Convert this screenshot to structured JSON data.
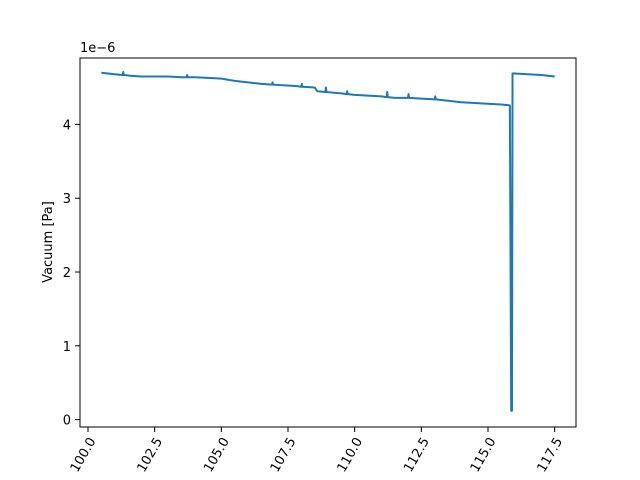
{
  "chart_data": {
    "type": "line",
    "title": "",
    "xlabel": "",
    "ylabel": "Vacuum [Pa]",
    "y_offset_text": "1e−6",
    "y_multiplier": 1e-06,
    "xlim": [
      99.7,
      118.3
    ],
    "ylim": [
      -0.1,
      4.9
    ],
    "xticks": [
      100.0,
      102.5,
      105.0,
      107.5,
      110.0,
      112.5,
      115.0,
      117.5
    ],
    "xtick_labels": [
      "100.0",
      "102.5",
      "105.0",
      "107.5",
      "110.0",
      "112.5",
      "115.0",
      "117.5"
    ],
    "yticks": [
      0,
      1,
      2,
      3,
      4
    ],
    "ytick_labels": [
      "0",
      "1",
      "2",
      "3",
      "4"
    ],
    "xtick_rotation_deg": 60,
    "grid": false,
    "legend": "none",
    "color": "#1f77b4",
    "series": [
      {
        "x": [
          100.5,
          101.0,
          101.3,
          101.32,
          101.34,
          101.6,
          102.0,
          102.5,
          103.0,
          103.5,
          103.7,
          103.72,
          103.74,
          104.0,
          104.5,
          105.0,
          105.5,
          106.0,
          106.5,
          106.9,
          106.92,
          106.94,
          107.3,
          107.8,
          108.0,
          108.02,
          108.04,
          108.5,
          108.6,
          108.9,
          108.92,
          108.94,
          109.2,
          109.5,
          109.7,
          109.72,
          109.74,
          110.0,
          110.5,
          111.0,
          111.2,
          111.22,
          111.24,
          111.5,
          112.0,
          112.02,
          112.04,
          112.5,
          113.0,
          113.02,
          113.04,
          113.5,
          114.0,
          114.5,
          115.0,
          115.5,
          115.8,
          115.82,
          115.87,
          115.9,
          115.92,
          116.0,
          116.5,
          117.0,
          117.5
        ],
        "y": [
          4.7,
          4.68,
          4.67,
          4.71,
          4.67,
          4.66,
          4.65,
          4.65,
          4.65,
          4.64,
          4.64,
          4.67,
          4.64,
          4.64,
          4.63,
          4.62,
          4.59,
          4.57,
          4.55,
          4.54,
          4.57,
          4.54,
          4.53,
          4.52,
          4.51,
          4.55,
          4.51,
          4.5,
          4.45,
          4.44,
          4.5,
          4.44,
          4.43,
          4.42,
          4.41,
          4.45,
          4.41,
          4.4,
          4.39,
          4.38,
          4.37,
          4.44,
          4.37,
          4.36,
          4.36,
          4.41,
          4.36,
          4.35,
          4.34,
          4.38,
          4.34,
          4.32,
          4.3,
          4.29,
          4.28,
          4.27,
          4.26,
          4.25,
          0.12,
          0.12,
          4.69,
          4.69,
          4.68,
          4.67,
          4.65
        ]
      }
    ]
  }
}
